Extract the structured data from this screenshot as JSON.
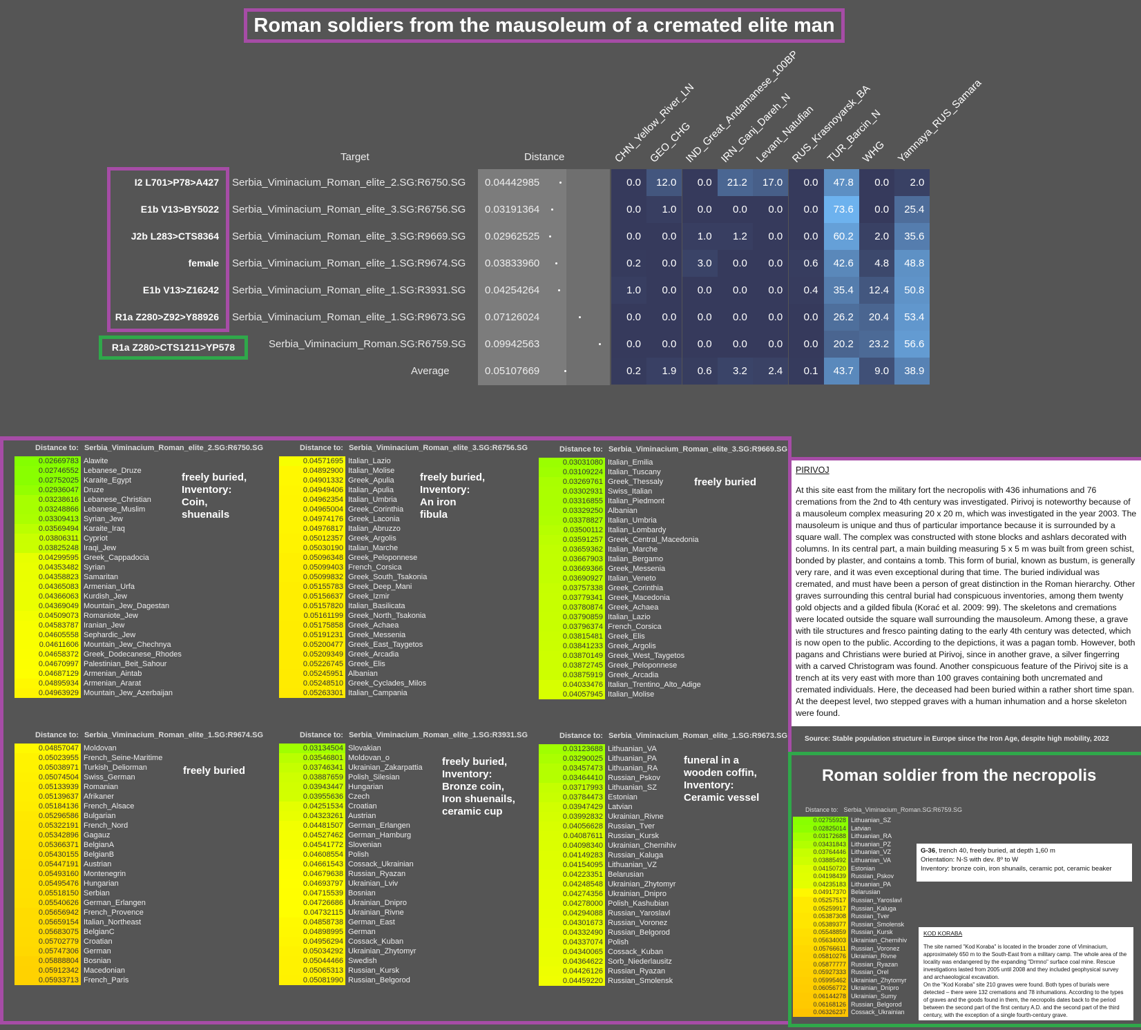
{
  "title": "Roman soldiers from the mausoleum of a cremated elite man",
  "table": {
    "target_header": "Target",
    "distance_header": "Distance",
    "columns": [
      "CHN_Yellow_River_LN",
      "GEO_CHG",
      "IND_Great_Andamanese_100BP",
      "IRN_Ganj_Dareh_N",
      "Levant_Natufian",
      "RUS_Krasnoyarsk_BA",
      "TUR_Barcin_N",
      "WHG",
      "Yamnaya_RUS_Samara"
    ],
    "rows": [
      {
        "label": "I2 L701>P78>A427",
        "target": "Serbia_Viminacium_Roman_elite_2.SG:R6750.SG",
        "distance": "0.04442985",
        "values": [
          0.0,
          12.0,
          0.0,
          21.2,
          17.0,
          0.0,
          47.8,
          0.0,
          2.0
        ]
      },
      {
        "label": "E1b V13>BY5022",
        "target": "Serbia_Viminacium_Roman_elite_3.SG:R6756.SG",
        "distance": "0.03191364",
        "values": [
          0.0,
          1.0,
          0.0,
          0.0,
          0.0,
          0.0,
          73.6,
          0.0,
          25.4
        ]
      },
      {
        "label": "J2b L283>CTS8364",
        "target": "Serbia_Viminacium_Roman_elite_3.SG:R9669.SG",
        "distance": "0.02962525",
        "values": [
          0.0,
          0.0,
          1.0,
          1.2,
          0.0,
          0.0,
          60.2,
          2.0,
          35.6
        ]
      },
      {
        "label": "female",
        "target": "Serbia_Viminacium_Roman_elite_1.SG:R9674.SG",
        "distance": "0.03833960",
        "values": [
          0.2,
          0.0,
          3.0,
          0.0,
          0.0,
          0.6,
          42.6,
          4.8,
          48.8
        ]
      },
      {
        "label": "E1b V13>Z16242",
        "target": "Serbia_Viminacium_Roman_elite_1.SG:R3931.SG",
        "distance": "0.04254264",
        "values": [
          1.0,
          0.0,
          0.0,
          0.0,
          0.0,
          0.4,
          35.4,
          12.4,
          50.8
        ]
      },
      {
        "label": "R1a Z280>Z92>Y88926",
        "target": "Serbia_Viminacium_Roman_elite_1.SG:R9673.SG",
        "distance": "0.07126024",
        "values": [
          0.0,
          0.0,
          0.0,
          0.0,
          0.0,
          0.0,
          26.2,
          20.4,
          53.4
        ]
      },
      {
        "label": "R1a Z280>CTS1211>YP578",
        "target": "Serbia_Viminacium_Roman.SG:R6759.SG",
        "distance": "0.09942563",
        "values": [
          0.0,
          0.0,
          0.0,
          0.0,
          0.0,
          0.0,
          20.2,
          23.2,
          56.6
        ]
      },
      {
        "label": "",
        "target": "Average",
        "distance": "0.05107669",
        "values": [
          0.2,
          1.9,
          0.6,
          3.2,
          2.4,
          0.1,
          43.7,
          9.0,
          38.9
        ]
      }
    ]
  },
  "distance_label": "Distance to:",
  "panels": [
    {
      "target": "Serbia_Viminacium_Roman_elite_2.SG:R6750.SG",
      "note": [
        "freely buried,",
        "Inventory:",
        "Coin,",
        "shuenails"
      ],
      "rows": [
        [
          "0.02669783",
          "Alawite"
        ],
        [
          "0.02746552",
          "Lebanese_Druze"
        ],
        [
          "0.02752025",
          "Karaite_Egypt"
        ],
        [
          "0.02936047",
          "Druze"
        ],
        [
          "0.03238616",
          "Lebanese_Christian"
        ],
        [
          "0.03248866",
          "Lebanese_Muslim"
        ],
        [
          "0.03309413",
          "Syrian_Jew"
        ],
        [
          "0.03569494",
          "Karaite_Iraq"
        ],
        [
          "0.03806311",
          "Cypriot"
        ],
        [
          "0.03825248",
          "Iraqi_Jew"
        ],
        [
          "0.04299595",
          "Greek_Cappadocia"
        ],
        [
          "0.04353482",
          "Syrian"
        ],
        [
          "0.04358823",
          "Samaritan"
        ],
        [
          "0.04365083",
          "Armenian_Urfa"
        ],
        [
          "0.04366063",
          "Kurdish_Jew"
        ],
        [
          "0.04369049",
          "Mountain_Jew_Dagestan"
        ],
        [
          "0.04509073",
          "Romaniote_Jew"
        ],
        [
          "0.04583787",
          "Iranian_Jew"
        ],
        [
          "0.04605558",
          "Sephardic_Jew"
        ],
        [
          "0.04611606",
          "Mountain_Jew_Chechnya"
        ],
        [
          "0.04658372",
          "Greek_Dodecanese_Rhodes"
        ],
        [
          "0.04670997",
          "Palestinian_Beit_Sahour"
        ],
        [
          "0.04687129",
          "Armenian_Aintab"
        ],
        [
          "0.04895934",
          "Armenian_Ararat"
        ],
        [
          "0.04963929",
          "Mountain_Jew_Azerbaijan"
        ]
      ]
    },
    {
      "target": "Serbia_Viminacium_Roman_elite_3.SG:R6756.SG",
      "note": [
        "freely buried,",
        "Inventory:",
        "An iron",
        "fibula"
      ],
      "rows": [
        [
          "0.04571695",
          "Italian_Lazio"
        ],
        [
          "0.04892900",
          "Italian_Molise"
        ],
        [
          "0.04901332",
          "Greek_Apulia"
        ],
        [
          "0.04949406",
          "Italian_Apulia"
        ],
        [
          "0.04962354",
          "Italian_Umbria"
        ],
        [
          "0.04965004",
          "Greek_Corinthia"
        ],
        [
          "0.04974176",
          "Greek_Laconia"
        ],
        [
          "0.04976817",
          "Italian_Abruzzo"
        ],
        [
          "0.05012357",
          "Greek_Argolis"
        ],
        [
          "0.05030190",
          "Italian_Marche"
        ],
        [
          "0.05096348",
          "Greek_Peloponnese"
        ],
        [
          "0.05099403",
          "French_Corsica"
        ],
        [
          "0.05099832",
          "Greek_South_Tsakonia"
        ],
        [
          "0.05155783",
          "Greek_Deep_Mani"
        ],
        [
          "0.05156637",
          "Greek_Izmir"
        ],
        [
          "0.05157820",
          "Italian_Basilicata"
        ],
        [
          "0.05161199",
          "Greek_North_Tsakonia"
        ],
        [
          "0.05175858",
          "Greek_Achaea"
        ],
        [
          "0.05191231",
          "Greek_Messenia"
        ],
        [
          "0.05200477",
          "Greek_East_Taygetos"
        ],
        [
          "0.05209349",
          "Greek_Arcadia"
        ],
        [
          "0.05226745",
          "Greek_Elis"
        ],
        [
          "0.05245951",
          "Albanian"
        ],
        [
          "0.05248510",
          "Greek_Cyclades_Milos"
        ],
        [
          "0.05263301",
          "Italian_Campania"
        ]
      ]
    },
    {
      "target": "Serbia_Viminacium_Roman_elite_3.SG:R9669.SG",
      "note": [
        "freely buried"
      ],
      "rows": [
        [
          "0.03031080",
          "Italian_Emilia"
        ],
        [
          "0.03109224",
          "Italian_Tuscany"
        ],
        [
          "0.03269761",
          "Greek_Thessaly"
        ],
        [
          "0.03302931",
          "Swiss_Italian"
        ],
        [
          "0.03316855",
          "Italian_Piedmont"
        ],
        [
          "0.03329250",
          "Albanian"
        ],
        [
          "0.03378827",
          "Italian_Umbria"
        ],
        [
          "0.03500112",
          "Italian_Lombardy"
        ],
        [
          "0.03591257",
          "Greek_Central_Macedonia"
        ],
        [
          "0.03659362",
          "Italian_Marche"
        ],
        [
          "0.03667903",
          "Italian_Bergamo"
        ],
        [
          "0.03669366",
          "Greek_Messenia"
        ],
        [
          "0.03690927",
          "Italian_Veneto"
        ],
        [
          "0.03757338",
          "Greek_Corinthia"
        ],
        [
          "0.03779341",
          "Greek_Macedonia"
        ],
        [
          "0.03780874",
          "Greek_Achaea"
        ],
        [
          "0.03790859",
          "Italian_Lazio"
        ],
        [
          "0.03796374",
          "French_Corsica"
        ],
        [
          "0.03815481",
          "Greek_Elis"
        ],
        [
          "0.03841233",
          "Greek_Argolis"
        ],
        [
          "0.03870149",
          "Greek_West_Taygetos"
        ],
        [
          "0.03872745",
          "Greek_Peloponnese"
        ],
        [
          "0.03875919",
          "Greek_Arcadia"
        ],
        [
          "0.04033476",
          "Italian_Trentino_Alto_Adige"
        ],
        [
          "0.04057945",
          "Italian_Molise"
        ]
      ]
    },
    {
      "target": "Serbia_Viminacium_Roman_elite_1.SG:R9674.SG",
      "note": [
        "freely buried"
      ],
      "rows": [
        [
          "0.04857047",
          "Moldovan"
        ],
        [
          "0.05023955",
          "French_Seine-Maritime"
        ],
        [
          "0.05038971",
          "Turkish_Deliorman"
        ],
        [
          "0.05074504",
          "Swiss_German"
        ],
        [
          "0.05133939",
          "Romanian"
        ],
        [
          "0.05139637",
          "Afrikaner"
        ],
        [
          "0.05184136",
          "French_Alsace"
        ],
        [
          "0.05296586",
          "Bulgarian"
        ],
        [
          "0.05322191",
          "French_Nord"
        ],
        [
          "0.05342896",
          "Gagauz"
        ],
        [
          "0.05366371",
          "BelgianA"
        ],
        [
          "0.05430155",
          "BelgianB"
        ],
        [
          "0.05447191",
          "Austrian"
        ],
        [
          "0.05493160",
          "Montenegrin"
        ],
        [
          "0.05495476",
          "Hungarian"
        ],
        [
          "0.05518150",
          "Serbian"
        ],
        [
          "0.05540626",
          "German_Erlangen"
        ],
        [
          "0.05656942",
          "French_Provence"
        ],
        [
          "0.05659154",
          "Italian_Northeast"
        ],
        [
          "0.05683075",
          "BelgianC"
        ],
        [
          "0.05702779",
          "Croatian"
        ],
        [
          "0.05747306",
          "German"
        ],
        [
          "0.05888804",
          "Bosnian"
        ],
        [
          "0.05912342",
          "Macedonian"
        ],
        [
          "0.05933713",
          "French_Paris"
        ]
      ]
    },
    {
      "target": "Serbia_Viminacium_Roman_elite_1.SG:R3931.SG",
      "note": [
        "freely buried,",
        "Inventory:",
        "Bronze coin,",
        "Iron shuenails,",
        "ceramic cup"
      ],
      "rows": [
        [
          "0.03134504",
          "Slovakian"
        ],
        [
          "0.03546801",
          "Moldovan_o"
        ],
        [
          "0.03746341",
          "Ukrainian_Zakarpattia"
        ],
        [
          "0.03887659",
          "Polish_Silesian"
        ],
        [
          "0.03943447",
          "Hungarian"
        ],
        [
          "0.03955636",
          "Czech"
        ],
        [
          "0.04251534",
          "Croatian"
        ],
        [
          "0.04323261",
          "Austrian"
        ],
        [
          "0.04481507",
          "German_Erlangen"
        ],
        [
          "0.04527462",
          "German_Hamburg"
        ],
        [
          "0.04541772",
          "Slovenian"
        ],
        [
          "0.04608554",
          "Polish"
        ],
        [
          "0.04661543",
          "Cossack_Ukrainian"
        ],
        [
          "0.04679638",
          "Russian_Ryazan"
        ],
        [
          "0.04693797",
          "Ukrainian_Lviv"
        ],
        [
          "0.04715539",
          "Bosnian"
        ],
        [
          "0.04726686",
          "Ukrainian_Dnipro"
        ],
        [
          "0.04732115",
          "Ukrainian_Rivne"
        ],
        [
          "0.04858738",
          "German_East"
        ],
        [
          "0.04898995",
          "German"
        ],
        [
          "0.04956294",
          "Cossack_Kuban"
        ],
        [
          "0.05034292",
          "Ukrainian_Zhytomyr"
        ],
        [
          "0.05044466",
          "Swedish"
        ],
        [
          "0.05065313",
          "Russian_Kursk"
        ],
        [
          "0.05081990",
          "Russian_Belgorod"
        ]
      ]
    },
    {
      "target": "Serbia_Viminacium_Roman_elite_1.SG:R9673.SG",
      "note": [
        "funeral in a",
        "wooden coffin,",
        "Inventory:",
        "Ceramic vessel"
      ],
      "rows": [
        [
          "0.03123688",
          "Lithuanian_VA"
        ],
        [
          "0.03290025",
          "Lithuanian_PA"
        ],
        [
          "0.03457473",
          "Lithuanian_RA"
        ],
        [
          "0.03464410",
          "Russian_Pskov"
        ],
        [
          "0.03717993",
          "Lithuanian_SZ"
        ],
        [
          "0.03784473",
          "Estonian"
        ],
        [
          "0.03947429",
          "Latvian"
        ],
        [
          "0.03992832",
          "Ukrainian_Rivne"
        ],
        [
          "0.04056628",
          "Russian_Tver"
        ],
        [
          "0.04087611",
          "Russian_Kursk"
        ],
        [
          "0.04098340",
          "Ukrainian_Chernihiv"
        ],
        [
          "0.04149283",
          "Russian_Kaluga"
        ],
        [
          "0.04154095",
          "Lithuanian_VZ"
        ],
        [
          "0.04223351",
          "Belarusian"
        ],
        [
          "0.04248548",
          "Ukrainian_Zhytomyr"
        ],
        [
          "0.04274356",
          "Ukrainian_Dnipro"
        ],
        [
          "0.04278000",
          "Polish_Kashubian"
        ],
        [
          "0.04294088",
          "Russian_Yaroslavl"
        ],
        [
          "0.04301673",
          "Russian_Voronez"
        ],
        [
          "0.04332490",
          "Russian_Belgorod"
        ],
        [
          "0.04337074",
          "Polish"
        ],
        [
          "0.04340065",
          "Cossack_Kuban"
        ],
        [
          "0.04364622",
          "Sorb_Niederlausitz"
        ],
        [
          "0.04426126",
          "Russian_Ryazan"
        ],
        [
          "0.04459220",
          "Russian_Smolensk"
        ]
      ]
    }
  ],
  "pirivoj": {
    "heading": "PIRIVOJ",
    "text": "At this site east from the military fort the necropolis with 436 inhumations and 76 cremations from the 2nd to 4th century was investigated. Pirivoj is noteworthy because of a mausoleum complex measuring 20 x 20 m, which was investigated in the year 2003. The mausoleum is unique and thus of particular importance because it is surrounded by a square wall. The complex was constructed with stone blocks and ashlars decorated with columns. In its central part, a main building measuring 5 x 5 m was built from green schist, bonded by plaster, and contains a tomb. This form of burial, known as bustum, is generally very rare, and it was even exceptional during that time. The buried individual was cremated, and must have been a person of great distinction in the Roman hierarchy. Other graves surrounding this central burial had conspicuous inventories, among them twenty gold objects and a gilded fibula (Korać et al. 2009: 99). The skeletons and cremations were located outside the square wall surrounding the mausoleum. Among these, a grave with tile structures and fresco painting dating to the early 4th century was detected, which is now open to the public. According to the depictions, it was a pagan tomb. However, both pagans and Christians were buried at Pirivoj, since in another grave, a silver fingerring with a carved Christogram was found. Another conspicuous feature of the Pirivoj site is a trench at its very east with more than 100 graves containing both uncremated and cremated individuals. Here, the deceased had been buried within a rather short time span. At the deepest level, two stepped graves with a human inhumation and a horse skeleton were found."
  },
  "source": "Source:  Stable population structure in Europe since the Iron Age, despite high mobility, 2022",
  "necropolis": {
    "title": "Roman soldier from the necropolis",
    "target": "Serbia_Viminacium_Roman.SG:R6759.SG",
    "rows": [
      [
        "0.02755928",
        "Lithuanian_SZ"
      ],
      [
        "0.02825014",
        "Latvian"
      ],
      [
        "0.03172688",
        "Lithuanian_RA"
      ],
      [
        "0.03431843",
        "Lithuanian_PZ"
      ],
      [
        "0.03764446",
        "Lithuanian_VZ"
      ],
      [
        "0.03885492",
        "Lithuanian_VA"
      ],
      [
        "0.04150720",
        "Estonian"
      ],
      [
        "0.04198439",
        "Russian_Pskov"
      ],
      [
        "0.04235183",
        "Lithuanian_PA"
      ],
      [
        "0.04917370",
        "Belarusian"
      ],
      [
        "0.05257517",
        "Russian_Yaroslavl"
      ],
      [
        "0.05259917",
        "Russian_Kaluga"
      ],
      [
        "0.05387308",
        "Russian_Tver"
      ],
      [
        "0.05389377",
        "Russian_Smolensk"
      ],
      [
        "0.05548859",
        "Russian_Kursk"
      ],
      [
        "0.05634003",
        "Ukrainian_Chernihiv"
      ],
      [
        "0.05766611",
        "Russian_Voronez"
      ],
      [
        "0.05810276",
        "Ukrainian_Rivne"
      ],
      [
        "0.05877777",
        "Russian_Ryazan"
      ],
      [
        "0.05927333",
        "Russian_Orel"
      ],
      [
        "0.05995462",
        "Ukrainian_Zhytomyr"
      ],
      [
        "0.06056772",
        "Ukrainian_Dnipro"
      ],
      [
        "0.06144278",
        "Ukrainian_Sumy"
      ],
      [
        "0.06168126",
        "Russian_Belgorod"
      ],
      [
        "0.06326237",
        "Cossack_Ukrainian"
      ]
    ],
    "grave_info": {
      "id": "G-36",
      "line1": ", trench 40, freely buried, at depth 1,60 m",
      "line2": "Orientation: N-S with dev. 8º to W",
      "line3": "Inventory: bronze coin, iron shunails, ceramic pot, ceramic beaker"
    },
    "kod": {
      "heading": "KOD KORABA",
      "text": "The site named \"Kod Koraba\" is located in the broader zone of Viminacium, approximately 650 m to the South-East from a military camp. The whole area of the locality was endangered by the expanding \"Drmno\" surface coal mine. Rescue investigations lasted from 2005 until 2008 and they included geophysical survey and archaeological excavation.",
      "text2": "On the \"Kod Koraba\" site 210 graves were found. Both types of burials were detected – there were 132 cremations and 78 inhumations. According to the types of graves and the goods found in them, the necropolis dates back to the period between the second part of the first century A.D. and the second part of the third century, with the exception of a single fourth-century grave."
    }
  },
  "colors": {
    "purple": "#a64ca6",
    "green": "#2fa84a"
  }
}
